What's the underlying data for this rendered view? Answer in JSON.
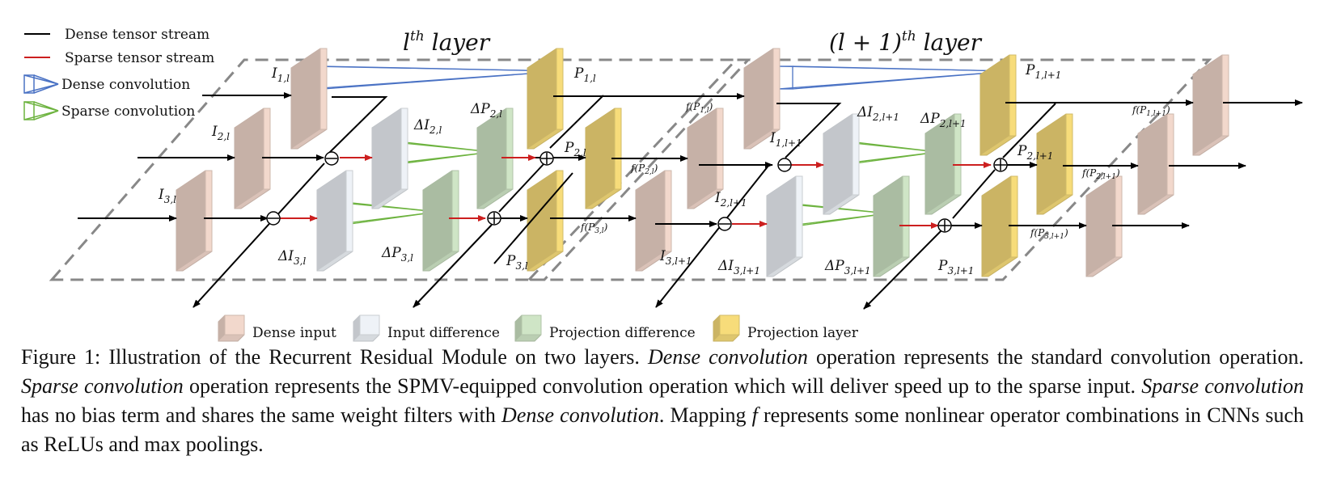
{
  "legend_top": {
    "dense_stream": "Dense tensor stream",
    "sparse_stream": "Sparse tensor stream",
    "dense_conv": "Dense convolution",
    "sparse_conv": "Sparse convolution"
  },
  "titles": {
    "layer_l": "l",
    "layer_l_sup": "th",
    "layer_l_word": " layer",
    "layer_l1": "(l + 1)",
    "layer_l1_sup": "th",
    "layer_l1_word": " layer"
  },
  "labels": {
    "I1l": "I",
    "I1l_sub": "1,l",
    "I2l": "I",
    "I2l_sub": "2,l",
    "I3l": "I",
    "I3l_sub": "3,l",
    "dI2l": "ΔI",
    "dI2l_sub": "2,l",
    "dI3l": "ΔI",
    "dI3l_sub": "3,l",
    "dP2l": "ΔP",
    "dP2l_sub": "2,l",
    "dP3l": "ΔP",
    "dP3l_sub": "3,l",
    "P1l": "P",
    "P1l_sub": "1,l",
    "P2l": "P",
    "P2l_sub": "2,l",
    "P3l": "P",
    "P3l_sub": "3,l",
    "fP1l": "f(P",
    "fP1l_sub": "1,l",
    "fP1l_end": ")",
    "fP2l": "f(P",
    "fP2l_sub": "2,l",
    "fP2l_end": ")",
    "fP3l": "f(P",
    "fP3l_sub": "3,l",
    "fP3l_end": ")",
    "I1l1": "I",
    "I1l1_sub": "1,l+1",
    "I2l1": "I",
    "I2l1_sub": "2,l+1",
    "I3l1": "I",
    "I3l1_sub": "3,l+1",
    "dI2l1": "ΔI",
    "dI2l1_sub": "2,l+1",
    "dI3l1": "ΔI",
    "dI3l1_sub": "3,l+1",
    "dP2l1": "ΔP",
    "dP2l1_sub": "2,l+1",
    "dP3l1": "ΔP",
    "dP3l1_sub": "3,l+1",
    "P1l1": "P",
    "P1l1_sub": "1,l+1",
    "P2l1": "P",
    "P2l1_sub": "2,l+1",
    "P3l1": "P",
    "P3l1_sub": "3,l+1",
    "fP1l1": "f(P",
    "fP1l1_sub": "1,l+1",
    "fP1l1_end": ")",
    "fP2l1": "f(P",
    "fP2l1_sub": "2,l+1",
    "fP2l1_end": ")",
    "fP3l1": "f(P",
    "fP3l1_sub": "3,l+1",
    "fP3l1_end": ")"
  },
  "legend_bottom": {
    "dense_input": "Dense input",
    "input_difference": "Input difference",
    "projection_difference": "Projection difference",
    "projection_layer": "Projection layer"
  },
  "colors": {
    "dense_input": "#f2d8cc",
    "input_difference": "#eef2f7",
    "projection_difference": "#cfe5c6",
    "projection_layer": "#f7dc7a",
    "dense_stream": "#000000",
    "sparse_stream": "#cc1f1f",
    "dense_conv": "#4a72c4",
    "sparse_conv": "#6db33f"
  },
  "caption": {
    "p1": "Figure 1: Illustration of the Recurrent Residual Module on two layers. ",
    "e1": "Dense convolution",
    "p2": " operation represents the standard convolution operation. ",
    "e2": "Sparse convolution",
    "p3": " operation represents the SPMV-equipped convolution operation which will deliver speed up to the sparse input. ",
    "e3": "Sparse convolution",
    "p4": " has no bias term and shares the same weight filters with ",
    "e4": "Dense convolution",
    "p5": ". Mapping ",
    "e5": "f",
    "p6": " represents some nonlinear operator combinations in CNNs such as ReLUs and max poolings."
  }
}
